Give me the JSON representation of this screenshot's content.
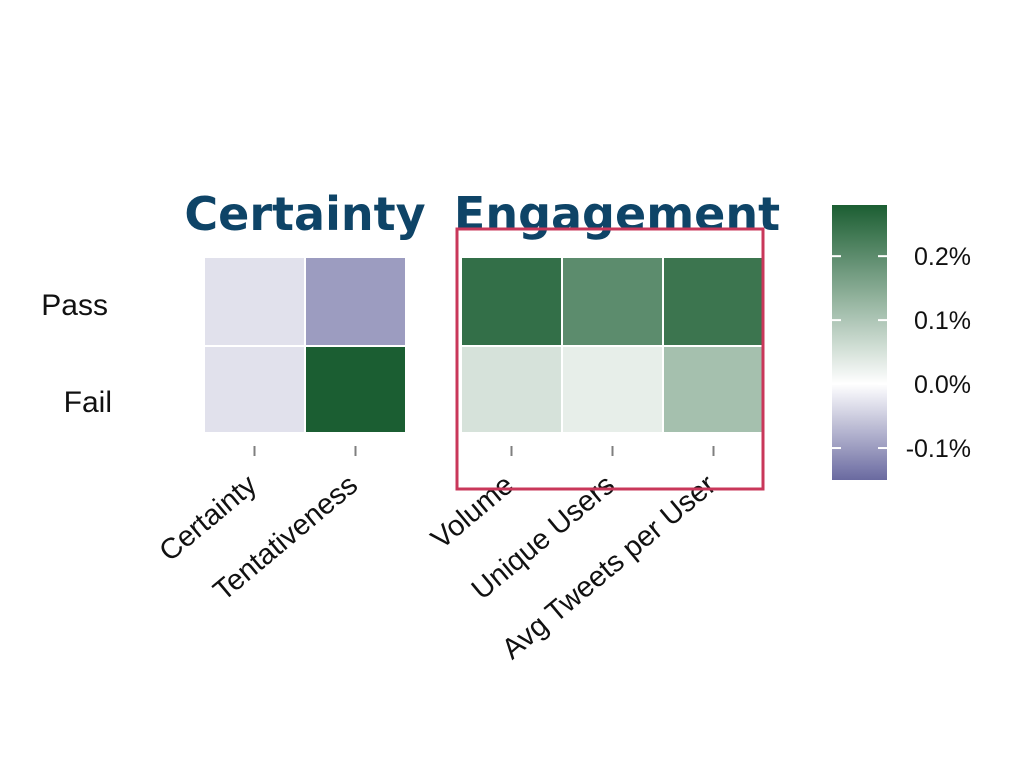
{
  "chart_data": {
    "type": "heatmap",
    "rows": [
      "Pass",
      "Fail"
    ],
    "panels": [
      {
        "title": "Certainty",
        "columns": [
          "Certainty",
          "Tentativeness"
        ],
        "values": [
          [
            -0.03,
            -0.1
          ],
          [
            -0.03,
            0.28
          ]
        ]
      },
      {
        "title": "Engagement",
        "highlighted": true,
        "columns": [
          "Volume",
          "Unique Users",
          "Avg Tweets per User"
        ],
        "values": [
          [
            0.25,
            0.2,
            0.24
          ],
          [
            0.05,
            0.03,
            0.11
          ]
        ]
      }
    ],
    "colorbar": {
      "ticks": [
        {
          "value": 0.2,
          "label": "0.2%"
        },
        {
          "value": 0.1,
          "label": "0.1%"
        },
        {
          "value": 0.0,
          "label": "0.0%"
        },
        {
          "value": -0.1,
          "label": "-0.1%"
        }
      ],
      "range": [
        -0.15,
        0.28
      ],
      "low_color": "#6A6AA0",
      "mid_color": "#FFFFFF",
      "high_color": "#1B5E32"
    },
    "colors": {
      "title": "#0E4467",
      "highlight_box": "#C9375A",
      "tick_mark": "#7F7F7F"
    }
  }
}
